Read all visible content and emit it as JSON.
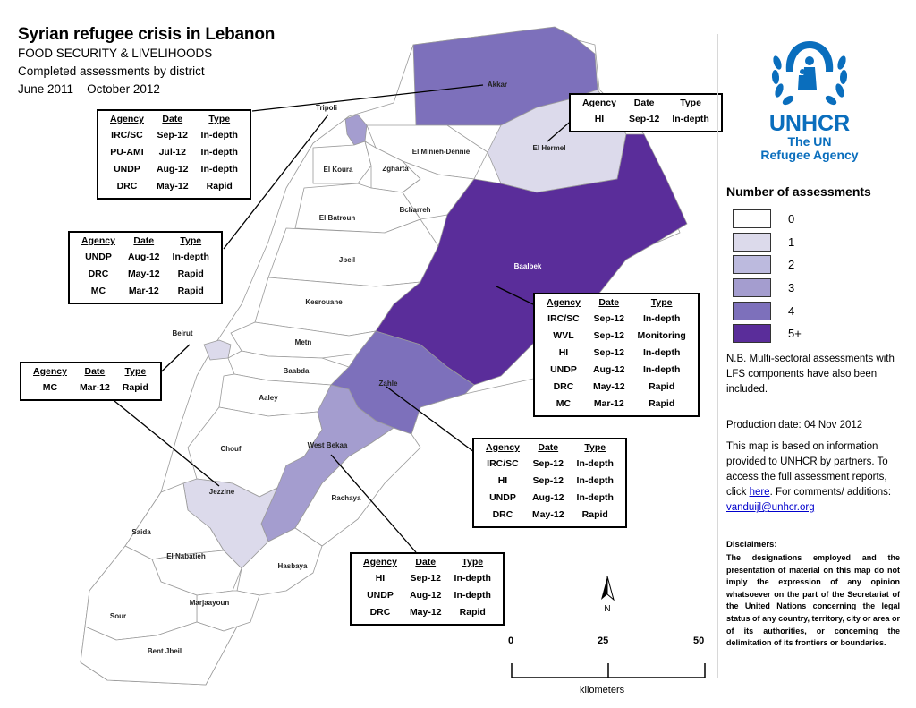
{
  "header": {
    "title": "Syrian refugee crisis in Lebanon",
    "line1": "FOOD SECURITY & LIVELIHOODS",
    "line2": "Completed assessments by district",
    "line3": "June 2011 – October 2012"
  },
  "colors": {
    "c0": "#ffffff",
    "c1": "#dcdaeb",
    "c2": "#bcbade",
    "c3": "#a49dcf",
    "c4": "#7d70bb",
    "c5": "#5a2d9a"
  },
  "districts": [
    {
      "name": "Akkar",
      "assessments": 4
    },
    {
      "name": "Tripoli",
      "assessments": 3
    },
    {
      "name": "El Minieh-Dennie",
      "assessments": 0
    },
    {
      "name": "El Hermel",
      "assessments": 1
    },
    {
      "name": "El Koura",
      "assessments": 0
    },
    {
      "name": "Zgharta",
      "assessments": 0
    },
    {
      "name": "Bcharreh",
      "assessments": 0
    },
    {
      "name": "El Batroun",
      "assessments": 0
    },
    {
      "name": "Jbeil",
      "assessments": 0
    },
    {
      "name": "Baalbek",
      "assessments": 6
    },
    {
      "name": "Kesrouane",
      "assessments": 0
    },
    {
      "name": "Beirut",
      "assessments": 1
    },
    {
      "name": "Metn",
      "assessments": 0
    },
    {
      "name": "Baabda",
      "assessments": 0
    },
    {
      "name": "Aaley",
      "assessments": 0
    },
    {
      "name": "Zahle",
      "assessments": 4
    },
    {
      "name": "Chouf",
      "assessments": 0
    },
    {
      "name": "West Bekaa",
      "assessments": 3
    },
    {
      "name": "Jezzine",
      "assessments": 1
    },
    {
      "name": "Rachaya",
      "assessments": 0
    },
    {
      "name": "Saida",
      "assessments": 0
    },
    {
      "name": "El Nabatieh",
      "assessments": 0
    },
    {
      "name": "Hasbaya",
      "assessments": 0
    },
    {
      "name": "Marjaayoun",
      "assessments": 0
    },
    {
      "name": "Sour",
      "assessments": 0
    },
    {
      "name": "Bent Jbeil",
      "assessments": 0
    }
  ],
  "table_headers": {
    "agency": "Agency",
    "date": "Date",
    "type": "Type"
  },
  "boxes": {
    "akkar": [
      {
        "agency": "IRC/SC",
        "date": "Sep-12",
        "type": "In-depth"
      },
      {
        "agency": "PU-AMI",
        "date": "Jul-12",
        "type": "In-depth"
      },
      {
        "agency": "UNDP",
        "date": "Aug-12",
        "type": "In-depth"
      },
      {
        "agency": "DRC",
        "date": "May-12",
        "type": "Rapid"
      }
    ],
    "tripoli": [
      {
        "agency": "UNDP",
        "date": "Aug-12",
        "type": "In-depth"
      },
      {
        "agency": "DRC",
        "date": "May-12",
        "type": "Rapid"
      },
      {
        "agency": "MC",
        "date": "Mar-12",
        "type": "Rapid"
      }
    ],
    "hermel": [
      {
        "agency": "HI",
        "date": "Sep-12",
        "type": "In-depth"
      }
    ],
    "baalbek": [
      {
        "agency": "IRC/SC",
        "date": "Sep-12",
        "type": "In-depth"
      },
      {
        "agency": "WVL",
        "date": "Sep-12",
        "type": "Monitoring"
      },
      {
        "agency": "HI",
        "date": "Sep-12",
        "type": "In-depth"
      },
      {
        "agency": "UNDP",
        "date": "Aug-12",
        "type": "In-depth"
      },
      {
        "agency": "DRC",
        "date": "May-12",
        "type": "Rapid"
      },
      {
        "agency": "MC",
        "date": "Mar-12",
        "type": "Rapid"
      }
    ],
    "beirut": [
      {
        "agency": "MC",
        "date": "Mar-12",
        "type": "Rapid"
      }
    ],
    "zahle": [
      {
        "agency": "IRC/SC",
        "date": "Sep-12",
        "type": "In-depth"
      },
      {
        "agency": "HI",
        "date": "Sep-12",
        "type": "In-depth"
      },
      {
        "agency": "UNDP",
        "date": "Aug-12",
        "type": "In-depth"
      },
      {
        "agency": "DRC",
        "date": "May-12",
        "type": "Rapid"
      }
    ],
    "westbekaa": [
      {
        "agency": "HI",
        "date": "Sep-12",
        "type": "In-depth"
      },
      {
        "agency": "UNDP",
        "date": "Aug-12",
        "type": "In-depth"
      },
      {
        "agency": "DRC",
        "date": "May-12",
        "type": "Rapid"
      }
    ]
  },
  "logo": {
    "name": "UNHCR",
    "line1": "The UN",
    "line2": "Refugee Agency",
    "icon": "unhcr-emblem-icon"
  },
  "legend": {
    "title": "Number of assessments",
    "items": [
      {
        "label": "0",
        "color": "#ffffff"
      },
      {
        "label": "1",
        "color": "#dcdaeb"
      },
      {
        "label": "2",
        "color": "#bcbade"
      },
      {
        "label": "3",
        "color": "#a49dcf"
      },
      {
        "label": "4",
        "color": "#7d70bb"
      },
      {
        "label": "5+",
        "color": "#5a2d9a"
      }
    ]
  },
  "notes": {
    "nb": "N.B. Multi-sectoral assessments with LFS components have also been included.",
    "production": "Production date: 04 Nov 2012",
    "info_prefix": "This map is based on information provided to UNHCR by partners. To access the full assessment reports, click ",
    "info_link": "here",
    "info_suffix": ". For comments/ additions:",
    "email": "vanduijl@unhcr.org"
  },
  "disclaimer": {
    "title": "Disclaimers:",
    "text": "The designations employed and the presentation of material on this map do not imply the expression of any opinion whatsoever on the part of the Secretariat of the United Nations concerning the legal status of any country, territory, city or area or of its authorities, or concerning the delimitation of its frontiers or boundaries."
  },
  "scale": {
    "t0": "0",
    "t1": "25",
    "t2": "50",
    "unit": "kilometers"
  },
  "north": "N"
}
